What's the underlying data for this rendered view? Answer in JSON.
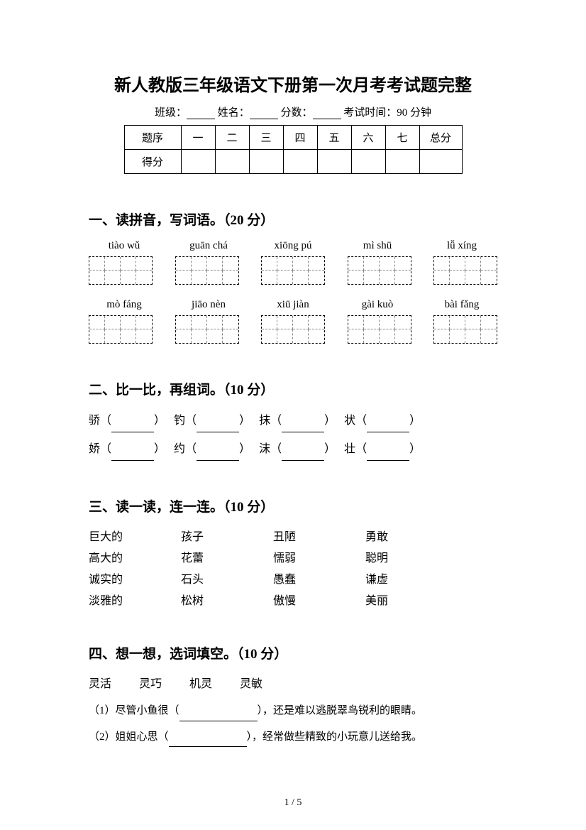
{
  "title": "新人教版三年级语文下册第一次月考考试题完整",
  "info": {
    "class_label": "班级：",
    "name_label": "姓名：",
    "score_label": "分数：",
    "time_label": "考试时间：90 分钟"
  },
  "score_table": {
    "row1": [
      "题序",
      "一",
      "二",
      "三",
      "四",
      "五",
      "六",
      "七",
      "总分"
    ],
    "row2_label": "得分"
  },
  "section1": {
    "heading": "一、读拼音，写词语。（20 分）",
    "row1": [
      "tiào wǔ",
      "guān chá",
      "xiōng pú",
      "mì shū",
      "lǚ xíng"
    ],
    "row2": [
      "mò fáng",
      "jiāo nèn",
      "xiū jiàn",
      "gài kuò",
      "bài fǎng"
    ]
  },
  "section2": {
    "heading": "二、比一比，再组词。（10 分）",
    "pairs": [
      [
        "骄",
        "钓",
        "抹",
        "状"
      ],
      [
        "娇",
        "约",
        "沫",
        "壮"
      ]
    ]
  },
  "section3": {
    "heading": "三、读一读，连一连。（10 分）",
    "rows": [
      [
        "巨大的",
        "孩子",
        "丑陋",
        "勇敢"
      ],
      [
        "高大的",
        "花蕾",
        "懦弱",
        "聪明"
      ],
      [
        "诚实的",
        "石头",
        "愚蠢",
        "谦虚"
      ],
      [
        "淡雅的",
        "松树",
        "傲慢",
        "美丽"
      ]
    ]
  },
  "section4": {
    "heading": "四、想一想，选词填空。（10 分）",
    "words": [
      "灵活",
      "灵巧",
      "机灵",
      "灵敏"
    ],
    "items": [
      {
        "pre": "（1）尽管小鱼很（",
        "post": "），还是难以逃脱翠鸟锐利的眼睛。"
      },
      {
        "pre": "（2）姐姐心思（",
        "post": "），经常做些精致的小玩意儿送给我。"
      }
    ]
  },
  "page_num": "1 / 5"
}
